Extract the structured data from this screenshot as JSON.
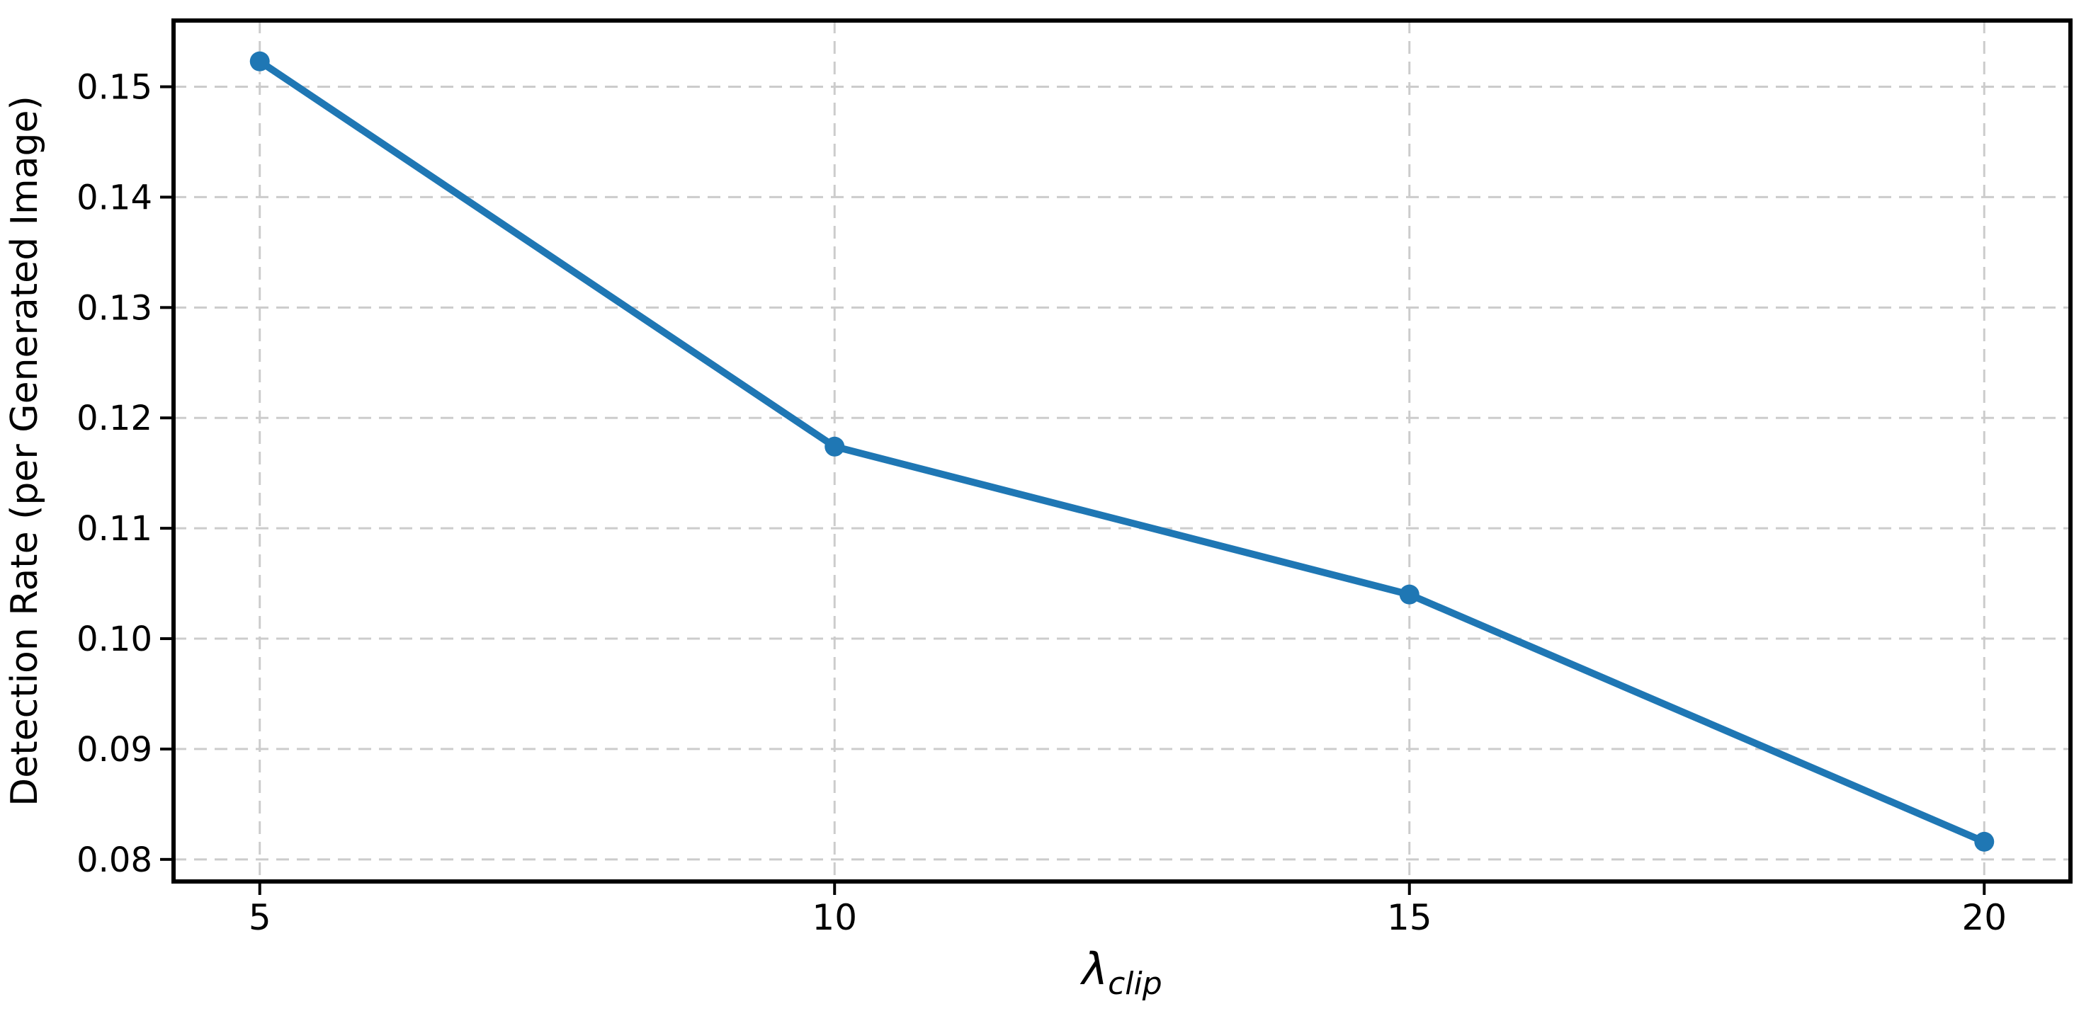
{
  "chart_data": {
    "type": "line",
    "title": "",
    "xlabel": {
      "base": "λ",
      "subscript": "clip"
    },
    "ylabel": "Detection Rate (per Generated Image)",
    "x": [
      5,
      10,
      15,
      20
    ],
    "series": [
      {
        "name": "detection-rate",
        "values": [
          0.1523,
          0.1174,
          0.104,
          0.0816
        ],
        "color": "#1f77b4",
        "marker": "circle"
      }
    ],
    "x_tick_values": [
      5,
      10,
      15,
      20
    ],
    "x_tick_labels": [
      "5",
      "10",
      "15",
      "20"
    ],
    "y_tick_values": [
      0.08,
      0.09,
      0.1,
      0.11,
      0.12,
      0.13,
      0.14,
      0.15
    ],
    "y_tick_labels": [
      "0.08",
      "0.09",
      "0.10",
      "0.11",
      "0.12",
      "0.13",
      "0.14",
      "0.15"
    ],
    "xlim": [
      4.25,
      20.75
    ],
    "ylim": [
      0.078,
      0.156
    ],
    "grid": true,
    "grid_style": "dashed",
    "legend": false,
    "colors": {
      "line": "#1f77b4",
      "marker": "#1f77b4",
      "grid": "#cccccc",
      "axis": "#000000",
      "text": "#000000",
      "background": "#ffffff"
    }
  }
}
